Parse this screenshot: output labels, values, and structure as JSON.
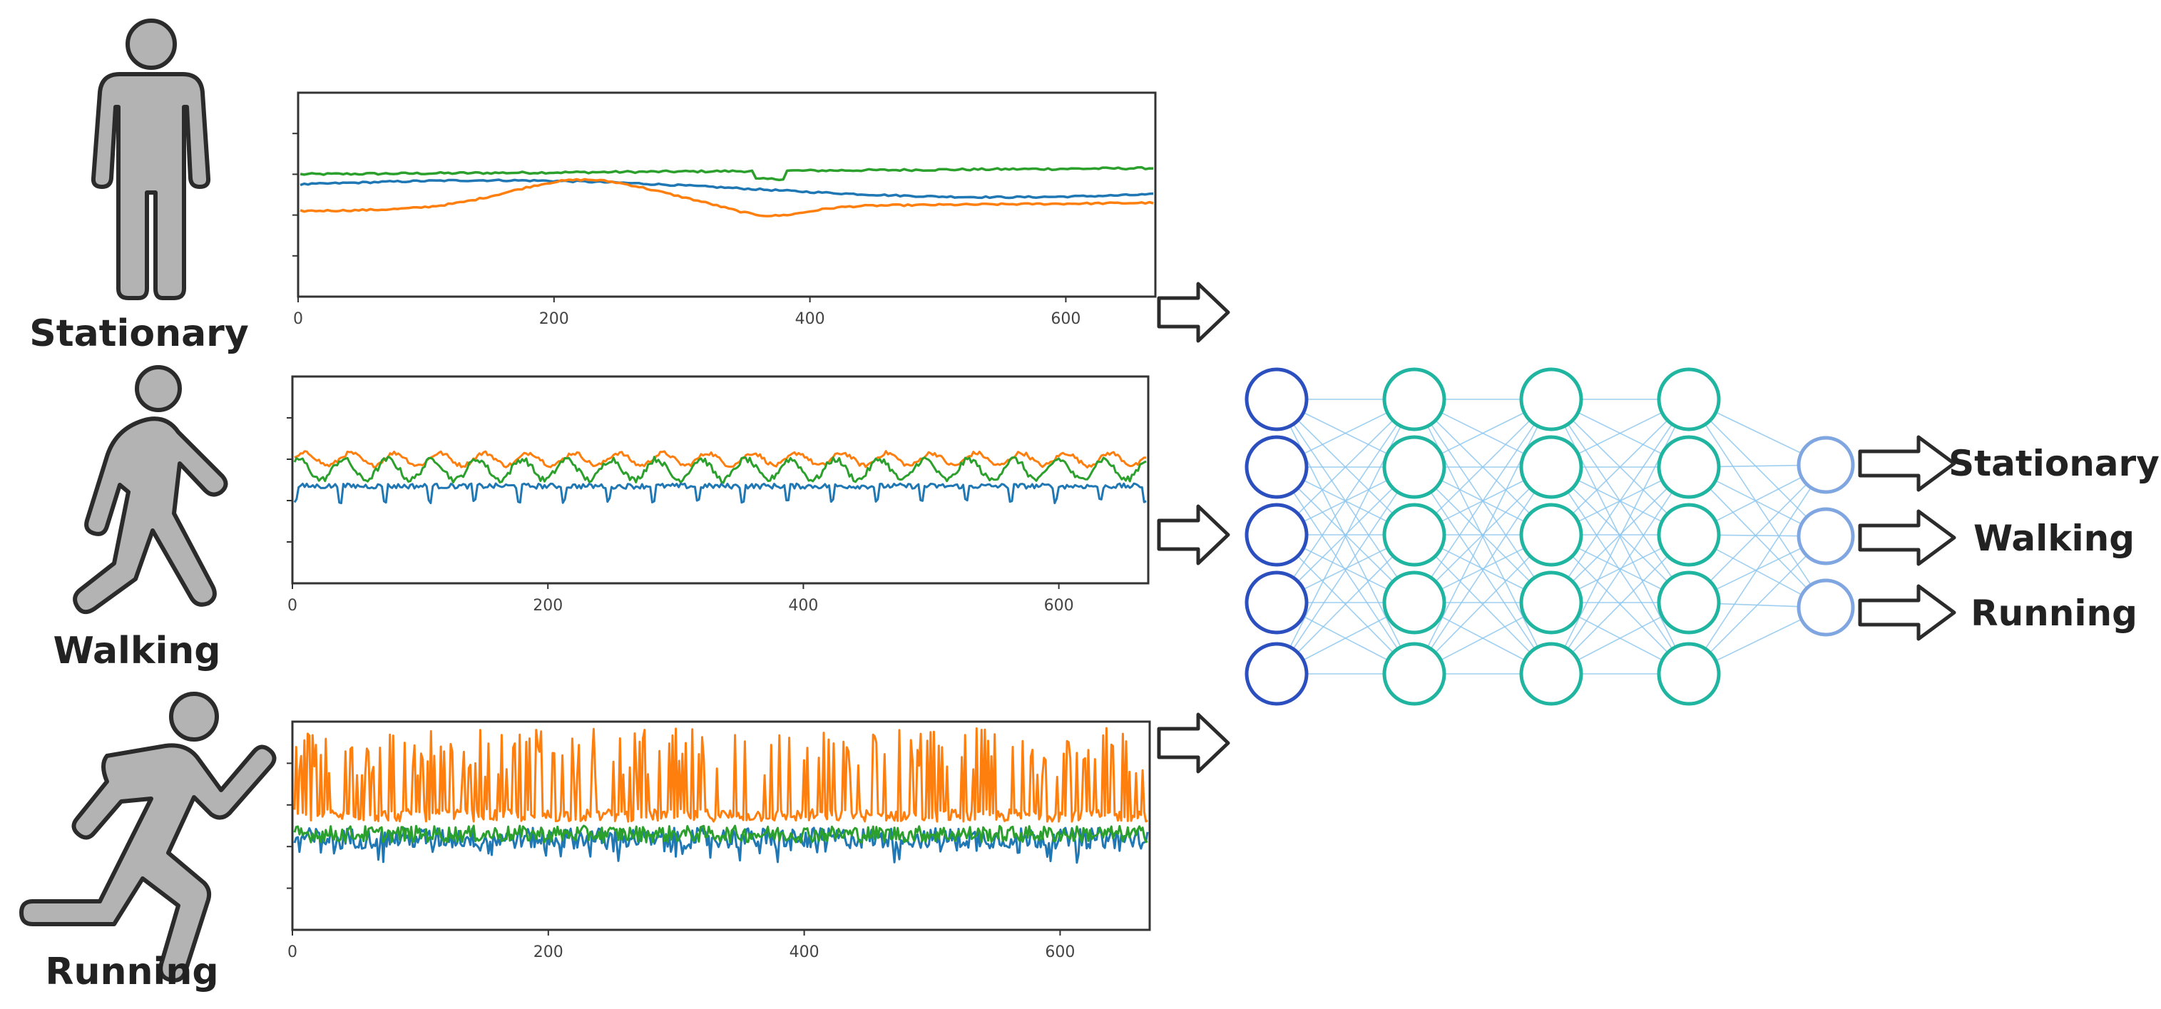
{
  "figure": {
    "colors": {
      "series_blue": "#1f77b4",
      "series_orange": "#ff7f0e",
      "series_green": "#2ca02c",
      "figure_gray": "#b3b3b3",
      "figure_outline": "#2b2b2b",
      "node_input": "#2b4fbf",
      "node_hidden": "#1fb5a0",
      "node_output": "#7fa6e0",
      "edge": "#8ec7ef"
    },
    "activities": [
      {
        "label": "Stationary",
        "icon": "standing-person-icon",
        "chart_data": {
          "type": "line",
          "xlim": [
            0,
            670
          ],
          "xticks": [
            "0",
            "200",
            "400",
            "600"
          ],
          "series_colors": [
            "#2ca02c",
            "#1f77b4",
            "#ff7f0e"
          ],
          "signal_pattern": "slow-drift"
        }
      },
      {
        "label": "Walking",
        "icon": "walking-person-icon",
        "chart_data": {
          "type": "line",
          "xlim": [
            0,
            670
          ],
          "xticks": [
            "0",
            "200",
            "400",
            "600"
          ],
          "series_colors": [
            "#ff7f0e",
            "#2ca02c",
            "#1f77b4"
          ],
          "signal_pattern": "periodic-moderate"
        }
      },
      {
        "label": "Running",
        "icon": "running-person-icon",
        "chart_data": {
          "type": "line",
          "xlim": [
            0,
            670
          ],
          "xticks": [
            "0",
            "200",
            "400",
            "600"
          ],
          "series_colors": [
            "#ff7f0e",
            "#1f77b4",
            "#2ca02c"
          ],
          "signal_pattern": "high-frequency-spikes"
        }
      }
    ],
    "network": {
      "layers": [
        5,
        5,
        5,
        5,
        3
      ]
    },
    "outputs": [
      "Stationary",
      "Walking",
      "Running"
    ]
  }
}
